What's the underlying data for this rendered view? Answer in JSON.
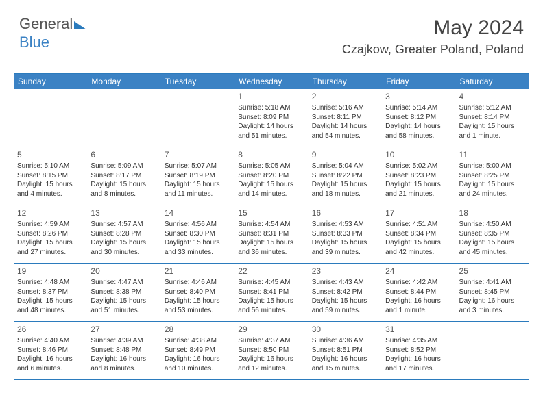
{
  "logo": {
    "prefix": "General",
    "suffix": "Blue"
  },
  "title": "May 2024",
  "location": "Czajkow, Greater Poland, Poland",
  "colors": {
    "header_bg": "#3b82c4",
    "border": "#2b7bbd",
    "text": "#333333"
  },
  "day_headers": [
    "Sunday",
    "Monday",
    "Tuesday",
    "Wednesday",
    "Thursday",
    "Friday",
    "Saturday"
  ],
  "weeks": [
    [
      {
        "num": "",
        "sunrise": "",
        "sunset": "",
        "daylight": ""
      },
      {
        "num": "",
        "sunrise": "",
        "sunset": "",
        "daylight": ""
      },
      {
        "num": "",
        "sunrise": "",
        "sunset": "",
        "daylight": ""
      },
      {
        "num": "1",
        "sunrise": "Sunrise: 5:18 AM",
        "sunset": "Sunset: 8:09 PM",
        "daylight": "Daylight: 14 hours and 51 minutes."
      },
      {
        "num": "2",
        "sunrise": "Sunrise: 5:16 AM",
        "sunset": "Sunset: 8:11 PM",
        "daylight": "Daylight: 14 hours and 54 minutes."
      },
      {
        "num": "3",
        "sunrise": "Sunrise: 5:14 AM",
        "sunset": "Sunset: 8:12 PM",
        "daylight": "Daylight: 14 hours and 58 minutes."
      },
      {
        "num": "4",
        "sunrise": "Sunrise: 5:12 AM",
        "sunset": "Sunset: 8:14 PM",
        "daylight": "Daylight: 15 hours and 1 minute."
      }
    ],
    [
      {
        "num": "5",
        "sunrise": "Sunrise: 5:10 AM",
        "sunset": "Sunset: 8:15 PM",
        "daylight": "Daylight: 15 hours and 4 minutes."
      },
      {
        "num": "6",
        "sunrise": "Sunrise: 5:09 AM",
        "sunset": "Sunset: 8:17 PM",
        "daylight": "Daylight: 15 hours and 8 minutes."
      },
      {
        "num": "7",
        "sunrise": "Sunrise: 5:07 AM",
        "sunset": "Sunset: 8:19 PM",
        "daylight": "Daylight: 15 hours and 11 minutes."
      },
      {
        "num": "8",
        "sunrise": "Sunrise: 5:05 AM",
        "sunset": "Sunset: 8:20 PM",
        "daylight": "Daylight: 15 hours and 14 minutes."
      },
      {
        "num": "9",
        "sunrise": "Sunrise: 5:04 AM",
        "sunset": "Sunset: 8:22 PM",
        "daylight": "Daylight: 15 hours and 18 minutes."
      },
      {
        "num": "10",
        "sunrise": "Sunrise: 5:02 AM",
        "sunset": "Sunset: 8:23 PM",
        "daylight": "Daylight: 15 hours and 21 minutes."
      },
      {
        "num": "11",
        "sunrise": "Sunrise: 5:00 AM",
        "sunset": "Sunset: 8:25 PM",
        "daylight": "Daylight: 15 hours and 24 minutes."
      }
    ],
    [
      {
        "num": "12",
        "sunrise": "Sunrise: 4:59 AM",
        "sunset": "Sunset: 8:26 PM",
        "daylight": "Daylight: 15 hours and 27 minutes."
      },
      {
        "num": "13",
        "sunrise": "Sunrise: 4:57 AM",
        "sunset": "Sunset: 8:28 PM",
        "daylight": "Daylight: 15 hours and 30 minutes."
      },
      {
        "num": "14",
        "sunrise": "Sunrise: 4:56 AM",
        "sunset": "Sunset: 8:30 PM",
        "daylight": "Daylight: 15 hours and 33 minutes."
      },
      {
        "num": "15",
        "sunrise": "Sunrise: 4:54 AM",
        "sunset": "Sunset: 8:31 PM",
        "daylight": "Daylight: 15 hours and 36 minutes."
      },
      {
        "num": "16",
        "sunrise": "Sunrise: 4:53 AM",
        "sunset": "Sunset: 8:33 PM",
        "daylight": "Daylight: 15 hours and 39 minutes."
      },
      {
        "num": "17",
        "sunrise": "Sunrise: 4:51 AM",
        "sunset": "Sunset: 8:34 PM",
        "daylight": "Daylight: 15 hours and 42 minutes."
      },
      {
        "num": "18",
        "sunrise": "Sunrise: 4:50 AM",
        "sunset": "Sunset: 8:35 PM",
        "daylight": "Daylight: 15 hours and 45 minutes."
      }
    ],
    [
      {
        "num": "19",
        "sunrise": "Sunrise: 4:48 AM",
        "sunset": "Sunset: 8:37 PM",
        "daylight": "Daylight: 15 hours and 48 minutes."
      },
      {
        "num": "20",
        "sunrise": "Sunrise: 4:47 AM",
        "sunset": "Sunset: 8:38 PM",
        "daylight": "Daylight: 15 hours and 51 minutes."
      },
      {
        "num": "21",
        "sunrise": "Sunrise: 4:46 AM",
        "sunset": "Sunset: 8:40 PM",
        "daylight": "Daylight: 15 hours and 53 minutes."
      },
      {
        "num": "22",
        "sunrise": "Sunrise: 4:45 AM",
        "sunset": "Sunset: 8:41 PM",
        "daylight": "Daylight: 15 hours and 56 minutes."
      },
      {
        "num": "23",
        "sunrise": "Sunrise: 4:43 AM",
        "sunset": "Sunset: 8:42 PM",
        "daylight": "Daylight: 15 hours and 59 minutes."
      },
      {
        "num": "24",
        "sunrise": "Sunrise: 4:42 AM",
        "sunset": "Sunset: 8:44 PM",
        "daylight": "Daylight: 16 hours and 1 minute."
      },
      {
        "num": "25",
        "sunrise": "Sunrise: 4:41 AM",
        "sunset": "Sunset: 8:45 PM",
        "daylight": "Daylight: 16 hours and 3 minutes."
      }
    ],
    [
      {
        "num": "26",
        "sunrise": "Sunrise: 4:40 AM",
        "sunset": "Sunset: 8:46 PM",
        "daylight": "Daylight: 16 hours and 6 minutes."
      },
      {
        "num": "27",
        "sunrise": "Sunrise: 4:39 AM",
        "sunset": "Sunset: 8:48 PM",
        "daylight": "Daylight: 16 hours and 8 minutes."
      },
      {
        "num": "28",
        "sunrise": "Sunrise: 4:38 AM",
        "sunset": "Sunset: 8:49 PM",
        "daylight": "Daylight: 16 hours and 10 minutes."
      },
      {
        "num": "29",
        "sunrise": "Sunrise: 4:37 AM",
        "sunset": "Sunset: 8:50 PM",
        "daylight": "Daylight: 16 hours and 12 minutes."
      },
      {
        "num": "30",
        "sunrise": "Sunrise: 4:36 AM",
        "sunset": "Sunset: 8:51 PM",
        "daylight": "Daylight: 16 hours and 15 minutes."
      },
      {
        "num": "31",
        "sunrise": "Sunrise: 4:35 AM",
        "sunset": "Sunset: 8:52 PM",
        "daylight": "Daylight: 16 hours and 17 minutes."
      },
      {
        "num": "",
        "sunrise": "",
        "sunset": "",
        "daylight": ""
      }
    ]
  ]
}
